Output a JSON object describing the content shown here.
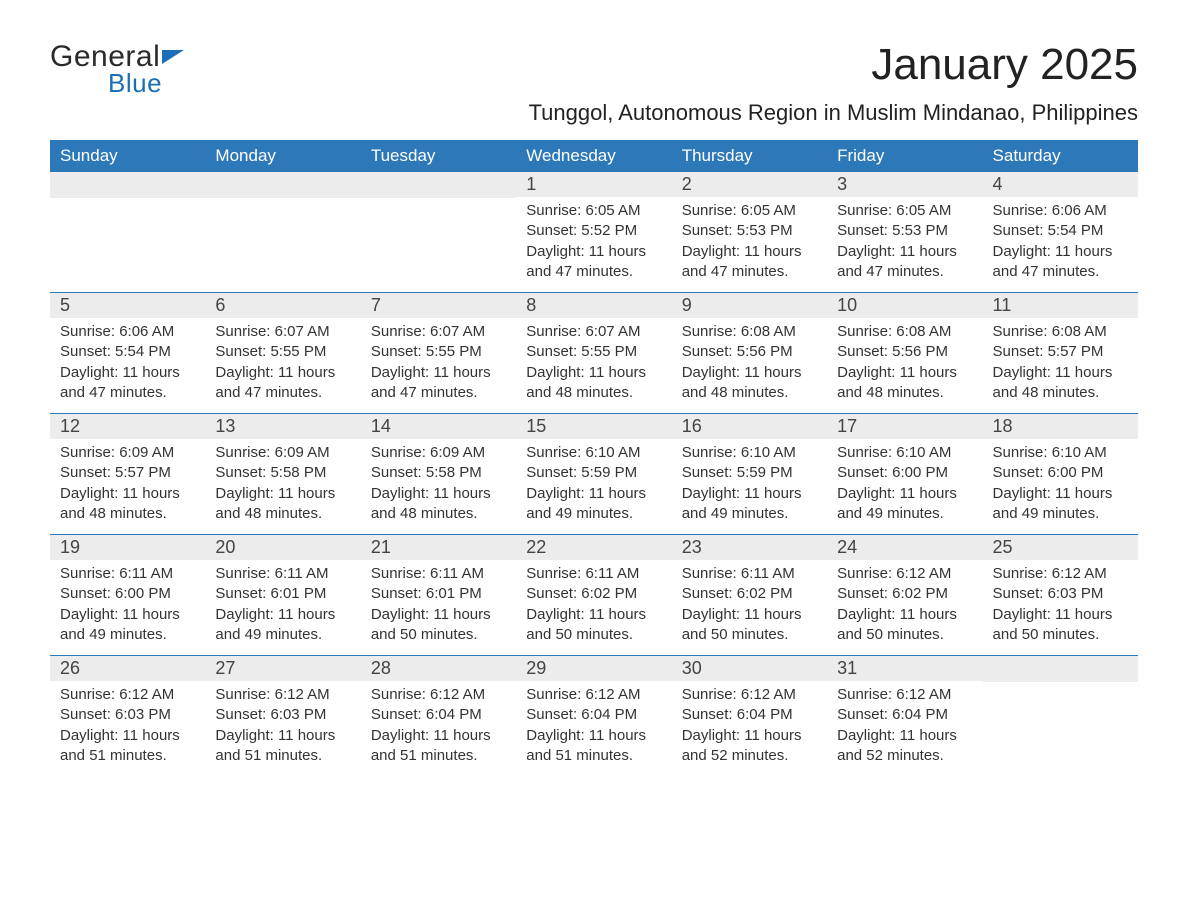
{
  "logo": {
    "general": "General",
    "blue": "Blue"
  },
  "title": "January 2025",
  "subtitle": "Tunggol, Autonomous Region in Muslim Mindanao, Philippines",
  "colors": {
    "header_bg": "#2d78b9",
    "header_text": "#ffffff",
    "daynum_bg": "#ececec",
    "daynum_text": "#444444",
    "body_text": "#333333",
    "week_border": "#2d78b9",
    "logo_accent": "#1b6fb6",
    "page_bg": "#ffffff"
  },
  "fonts": {
    "title_pt": 44,
    "subtitle_pt": 22,
    "weekday_pt": 17,
    "daynum_pt": 18,
    "content_pt": 15
  },
  "weekdays": [
    "Sunday",
    "Monday",
    "Tuesday",
    "Wednesday",
    "Thursday",
    "Friday",
    "Saturday"
  ],
  "weeks": [
    [
      {
        "num": "",
        "lines": []
      },
      {
        "num": "",
        "lines": []
      },
      {
        "num": "",
        "lines": []
      },
      {
        "num": "1",
        "lines": [
          "Sunrise: 6:05 AM",
          "Sunset: 5:52 PM",
          "Daylight: 11 hours and 47 minutes."
        ]
      },
      {
        "num": "2",
        "lines": [
          "Sunrise: 6:05 AM",
          "Sunset: 5:53 PM",
          "Daylight: 11 hours and 47 minutes."
        ]
      },
      {
        "num": "3",
        "lines": [
          "Sunrise: 6:05 AM",
          "Sunset: 5:53 PM",
          "Daylight: 11 hours and 47 minutes."
        ]
      },
      {
        "num": "4",
        "lines": [
          "Sunrise: 6:06 AM",
          "Sunset: 5:54 PM",
          "Daylight: 11 hours and 47 minutes."
        ]
      }
    ],
    [
      {
        "num": "5",
        "lines": [
          "Sunrise: 6:06 AM",
          "Sunset: 5:54 PM",
          "Daylight: 11 hours and 47 minutes."
        ]
      },
      {
        "num": "6",
        "lines": [
          "Sunrise: 6:07 AM",
          "Sunset: 5:55 PM",
          "Daylight: 11 hours and 47 minutes."
        ]
      },
      {
        "num": "7",
        "lines": [
          "Sunrise: 6:07 AM",
          "Sunset: 5:55 PM",
          "Daylight: 11 hours and 47 minutes."
        ]
      },
      {
        "num": "8",
        "lines": [
          "Sunrise: 6:07 AM",
          "Sunset: 5:55 PM",
          "Daylight: 11 hours and 48 minutes."
        ]
      },
      {
        "num": "9",
        "lines": [
          "Sunrise: 6:08 AM",
          "Sunset: 5:56 PM",
          "Daylight: 11 hours and 48 minutes."
        ]
      },
      {
        "num": "10",
        "lines": [
          "Sunrise: 6:08 AM",
          "Sunset: 5:56 PM",
          "Daylight: 11 hours and 48 minutes."
        ]
      },
      {
        "num": "11",
        "lines": [
          "Sunrise: 6:08 AM",
          "Sunset: 5:57 PM",
          "Daylight: 11 hours and 48 minutes."
        ]
      }
    ],
    [
      {
        "num": "12",
        "lines": [
          "Sunrise: 6:09 AM",
          "Sunset: 5:57 PM",
          "Daylight: 11 hours and 48 minutes."
        ]
      },
      {
        "num": "13",
        "lines": [
          "Sunrise: 6:09 AM",
          "Sunset: 5:58 PM",
          "Daylight: 11 hours and 48 minutes."
        ]
      },
      {
        "num": "14",
        "lines": [
          "Sunrise: 6:09 AM",
          "Sunset: 5:58 PM",
          "Daylight: 11 hours and 48 minutes."
        ]
      },
      {
        "num": "15",
        "lines": [
          "Sunrise: 6:10 AM",
          "Sunset: 5:59 PM",
          "Daylight: 11 hours and 49 minutes."
        ]
      },
      {
        "num": "16",
        "lines": [
          "Sunrise: 6:10 AM",
          "Sunset: 5:59 PM",
          "Daylight: 11 hours and 49 minutes."
        ]
      },
      {
        "num": "17",
        "lines": [
          "Sunrise: 6:10 AM",
          "Sunset: 6:00 PM",
          "Daylight: 11 hours and 49 minutes."
        ]
      },
      {
        "num": "18",
        "lines": [
          "Sunrise: 6:10 AM",
          "Sunset: 6:00 PM",
          "Daylight: 11 hours and 49 minutes."
        ]
      }
    ],
    [
      {
        "num": "19",
        "lines": [
          "Sunrise: 6:11 AM",
          "Sunset: 6:00 PM",
          "Daylight: 11 hours and 49 minutes."
        ]
      },
      {
        "num": "20",
        "lines": [
          "Sunrise: 6:11 AM",
          "Sunset: 6:01 PM",
          "Daylight: 11 hours and 49 minutes."
        ]
      },
      {
        "num": "21",
        "lines": [
          "Sunrise: 6:11 AM",
          "Sunset: 6:01 PM",
          "Daylight: 11 hours and 50 minutes."
        ]
      },
      {
        "num": "22",
        "lines": [
          "Sunrise: 6:11 AM",
          "Sunset: 6:02 PM",
          "Daylight: 11 hours and 50 minutes."
        ]
      },
      {
        "num": "23",
        "lines": [
          "Sunrise: 6:11 AM",
          "Sunset: 6:02 PM",
          "Daylight: 11 hours and 50 minutes."
        ]
      },
      {
        "num": "24",
        "lines": [
          "Sunrise: 6:12 AM",
          "Sunset: 6:02 PM",
          "Daylight: 11 hours and 50 minutes."
        ]
      },
      {
        "num": "25",
        "lines": [
          "Sunrise: 6:12 AM",
          "Sunset: 6:03 PM",
          "Daylight: 11 hours and 50 minutes."
        ]
      }
    ],
    [
      {
        "num": "26",
        "lines": [
          "Sunrise: 6:12 AM",
          "Sunset: 6:03 PM",
          "Daylight: 11 hours and 51 minutes."
        ]
      },
      {
        "num": "27",
        "lines": [
          "Sunrise: 6:12 AM",
          "Sunset: 6:03 PM",
          "Daylight: 11 hours and 51 minutes."
        ]
      },
      {
        "num": "28",
        "lines": [
          "Sunrise: 6:12 AM",
          "Sunset: 6:04 PM",
          "Daylight: 11 hours and 51 minutes."
        ]
      },
      {
        "num": "29",
        "lines": [
          "Sunrise: 6:12 AM",
          "Sunset: 6:04 PM",
          "Daylight: 11 hours and 51 minutes."
        ]
      },
      {
        "num": "30",
        "lines": [
          "Sunrise: 6:12 AM",
          "Sunset: 6:04 PM",
          "Daylight: 11 hours and 52 minutes."
        ]
      },
      {
        "num": "31",
        "lines": [
          "Sunrise: 6:12 AM",
          "Sunset: 6:04 PM",
          "Daylight: 11 hours and 52 minutes."
        ]
      },
      {
        "num": "",
        "lines": []
      }
    ]
  ]
}
